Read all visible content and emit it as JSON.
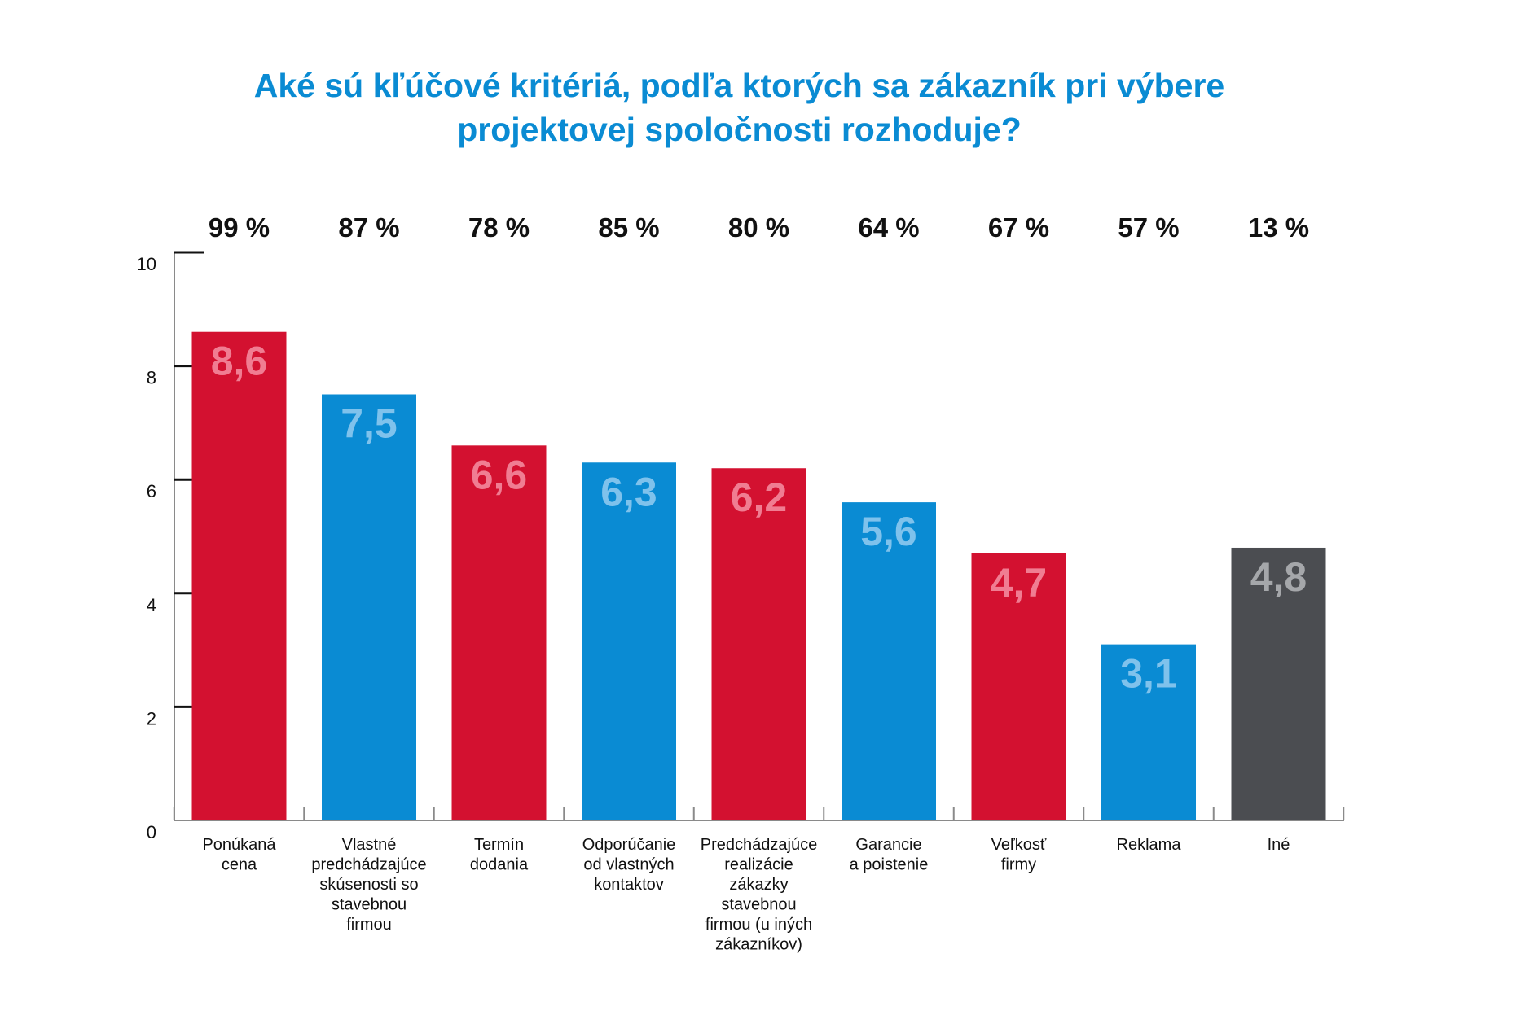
{
  "chart_data": {
    "type": "bar",
    "title_lines": [
      "Aké sú kľúčové kritériá, podľa ktorých sa zákazník pri výbere",
      "projektovej spoločnosti rozhoduje?"
    ],
    "ylim": [
      0,
      10
    ],
    "yticks": [
      "0",
      "2",
      "4",
      "6",
      "8",
      "10"
    ],
    "grid": false,
    "categories": [
      [
        "Ponúkaná",
        "cena"
      ],
      [
        "Vlastné",
        "predchádzajúce",
        "skúsenosti so",
        "stavebnou",
        "firmou"
      ],
      [
        "Termín",
        "dodania"
      ],
      [
        "Odporúčanie",
        "od vlastných",
        "kontaktov"
      ],
      [
        "Predchádzajúce",
        "realizácie",
        "zákazky",
        "stavebnou",
        "firmou (u iných",
        "zákazníkov)"
      ],
      [
        "Garancie",
        "a poistenie"
      ],
      [
        "Veľkosť",
        "firmy"
      ],
      [
        "Reklama"
      ],
      [
        "Iné"
      ]
    ],
    "values": [
      8.6,
      7.5,
      6.6,
      6.3,
      6.2,
      5.6,
      4.7,
      3.1,
      4.8
    ],
    "value_labels": [
      "8,6",
      "7,5",
      "6,6",
      "6,3",
      "6,2",
      "5,6",
      "4,7",
      "3,1",
      "4,8"
    ],
    "percent_labels": [
      "99 %",
      "87 %",
      "78 %",
      "85 %",
      "80 %",
      "64 %",
      "67 %",
      "57 %",
      "13 %"
    ],
    "bar_colors": [
      "#d31130",
      "#0a8bd3",
      "#d31130",
      "#0a8bd3",
      "#d31130",
      "#0a8bd3",
      "#d31130",
      "#0a8bd3",
      "#4b4d51"
    ],
    "value_label_colors": [
      "#f07d92",
      "#7fc2ec",
      "#f07d92",
      "#7fc2ec",
      "#f07d92",
      "#7fc2ec",
      "#f07d92",
      "#7fc2ec",
      "#a5a7aa"
    ]
  }
}
